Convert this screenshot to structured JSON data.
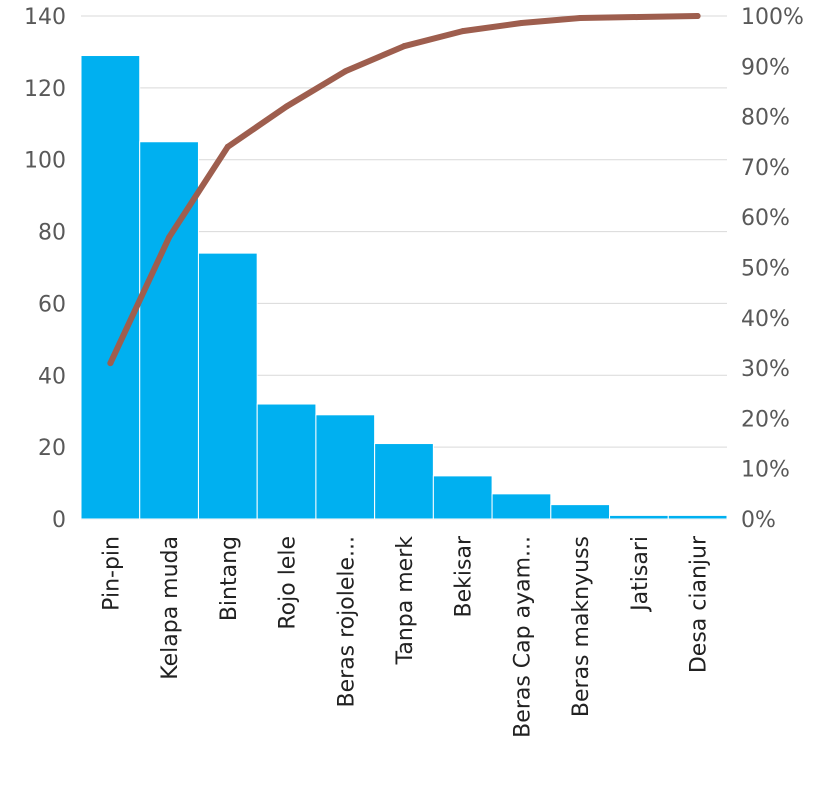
{
  "chart_data": {
    "type": "bar",
    "title": "",
    "xlabel": "",
    "ylabel": "",
    "categories": [
      "Pin-pin",
      "Kelapa muda",
      "Bintang",
      "Rojo lele",
      "Beras rojolele...",
      "Tanpa merk",
      "Bekisar",
      "Beras Cap ayam...",
      "Beras maknyuss",
      "Jatisari",
      "Desa cianjur"
    ],
    "series": [
      {
        "type": "bar",
        "axis": "left",
        "values": [
          129,
          105,
          74,
          32,
          29,
          21,
          12,
          7,
          4,
          1,
          1
        ]
      },
      {
        "type": "line",
        "axis": "right",
        "values": [
          0.31,
          0.56,
          0.74,
          0.82,
          0.89,
          0.94,
          0.97,
          0.986,
          0.996,
          0.998,
          1.0
        ]
      }
    ],
    "ylim": [
      0,
      140
    ],
    "y2lim": [
      0,
      1
    ],
    "yticks": [
      "0",
      "20",
      "40",
      "60",
      "80",
      "100",
      "120",
      "140"
    ],
    "y2ticks": [
      "0%",
      "10%",
      "20%",
      "30%",
      "40%",
      "50%",
      "60%",
      "70%",
      "80%",
      "90%",
      "100%"
    ],
    "grid": true,
    "colors": {
      "bar": "#00B0F0",
      "line": "#9E5E4E",
      "grid": "#D9D9D9",
      "axis_text": "#595959"
    }
  }
}
